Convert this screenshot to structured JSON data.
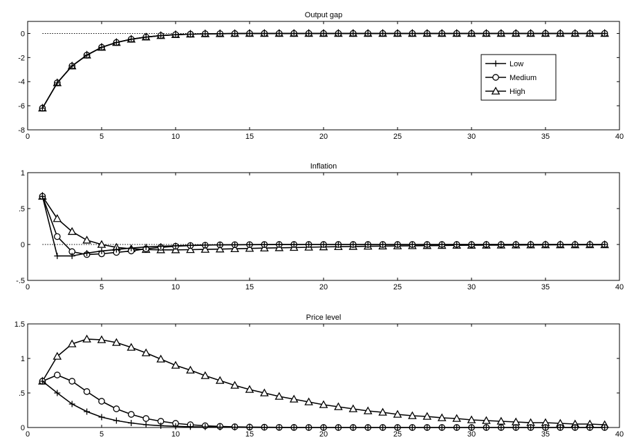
{
  "chart_data": [
    {
      "type": "line",
      "title": "Output gap",
      "xlabel": "",
      "ylabel": "",
      "xlim": [
        0,
        40
      ],
      "ylim": [
        -8,
        1
      ],
      "xticks": [
        0,
        5,
        10,
        15,
        20,
        25,
        30,
        35,
        40
      ],
      "yticks": [
        -8,
        -6,
        -4,
        -2,
        0
      ],
      "grid": false,
      "zero_line": true,
      "legend": {
        "placement": "upper-right",
        "entries": [
          "Low",
          "Medium",
          "High"
        ]
      },
      "x": [
        1,
        2,
        3,
        4,
        5,
        6,
        7,
        8,
        9,
        10,
        11,
        12,
        13,
        14,
        15,
        16,
        17,
        18,
        19,
        20,
        21,
        22,
        23,
        24,
        25,
        26,
        27,
        28,
        29,
        30,
        31,
        32,
        33,
        34,
        35,
        36,
        37,
        38,
        39
      ],
      "series": [
        {
          "name": "Low",
          "marker": "plus",
          "values": [
            -6.2,
            -4.1,
            -2.7,
            -1.8,
            -1.15,
            -0.75,
            -0.48,
            -0.3,
            -0.18,
            -0.1,
            -0.06,
            -0.03,
            -0.02,
            -0.01,
            0,
            0,
            0,
            0,
            0,
            0,
            0,
            0,
            0,
            0,
            0,
            0,
            0,
            0,
            0,
            0,
            0,
            0,
            0,
            0,
            0,
            0,
            0,
            0,
            0
          ]
        },
        {
          "name": "Medium",
          "marker": "circle",
          "values": [
            -6.2,
            -4.1,
            -2.7,
            -1.8,
            -1.15,
            -0.75,
            -0.48,
            -0.3,
            -0.18,
            -0.1,
            -0.06,
            -0.03,
            -0.02,
            -0.01,
            0,
            0,
            0,
            0,
            0,
            0,
            0,
            0,
            0,
            0,
            0,
            0,
            0,
            0,
            0,
            0,
            0,
            0,
            0,
            0,
            0,
            0,
            0,
            0,
            0
          ]
        },
        {
          "name": "High",
          "marker": "triangle",
          "values": [
            -6.2,
            -4.1,
            -2.7,
            -1.8,
            -1.15,
            -0.75,
            -0.48,
            -0.3,
            -0.18,
            -0.1,
            -0.06,
            -0.03,
            -0.02,
            -0.01,
            0,
            0,
            0,
            0,
            0,
            0,
            0,
            0,
            0,
            0,
            0,
            0,
            0,
            0,
            0,
            0,
            0,
            0,
            0,
            0,
            0,
            0,
            0,
            0,
            0
          ]
        }
      ]
    },
    {
      "type": "line",
      "title": "Inflation",
      "xlabel": "",
      "ylabel": "",
      "xlim": [
        0,
        40
      ],
      "ylim": [
        -0.5,
        1
      ],
      "xticks": [
        0,
        5,
        10,
        15,
        20,
        25,
        30,
        35,
        40
      ],
      "yticks": [
        -0.5,
        0,
        0.5,
        1
      ],
      "grid": false,
      "zero_line": true,
      "x": [
        1,
        2,
        3,
        4,
        5,
        6,
        7,
        8,
        9,
        10,
        11,
        12,
        13,
        14,
        15,
        16,
        17,
        18,
        19,
        20,
        21,
        22,
        23,
        24,
        25,
        26,
        27,
        28,
        29,
        30,
        31,
        32,
        33,
        34,
        35,
        36,
        37,
        38,
        39
      ],
      "series": [
        {
          "name": "Low",
          "marker": "plus",
          "values": [
            0.67,
            -0.16,
            -0.16,
            -0.12,
            -0.09,
            -0.07,
            -0.05,
            -0.035,
            -0.025,
            -0.018,
            -0.012,
            -0.008,
            -0.006,
            -0.004,
            -0.003,
            -0.002,
            -0.001,
            -0.001,
            0,
            0,
            0,
            0,
            0,
            0,
            0,
            0,
            0,
            0,
            0,
            0,
            0,
            0,
            0,
            0,
            0,
            0,
            0,
            0,
            0
          ]
        },
        {
          "name": "Medium",
          "marker": "circle",
          "values": [
            0.67,
            0.11,
            -0.1,
            -0.14,
            -0.13,
            -0.11,
            -0.09,
            -0.06,
            -0.04,
            -0.025,
            -0.015,
            -0.01,
            -0.005,
            -0.003,
            -0.002,
            -0.001,
            0,
            0,
            0,
            0,
            0,
            0,
            0,
            0,
            0,
            0,
            0,
            0,
            0,
            0,
            0,
            0,
            0,
            0,
            0,
            0,
            0,
            0,
            0
          ]
        },
        {
          "name": "High",
          "marker": "triangle",
          "values": [
            0.67,
            0.36,
            0.18,
            0.06,
            0.0,
            -0.04,
            -0.06,
            -0.07,
            -0.075,
            -0.075,
            -0.072,
            -0.068,
            -0.064,
            -0.06,
            -0.055,
            -0.05,
            -0.046,
            -0.042,
            -0.038,
            -0.034,
            -0.031,
            -0.028,
            -0.025,
            -0.022,
            -0.02,
            -0.018,
            -0.016,
            -0.014,
            -0.012,
            -0.011,
            -0.01,
            -0.009,
            -0.008,
            -0.007,
            -0.006,
            -0.005,
            -0.005,
            -0.004,
            -0.004
          ]
        }
      ]
    },
    {
      "type": "line",
      "title": "Price level",
      "xlabel": "",
      "ylabel": "",
      "xlim": [
        0,
        40
      ],
      "ylim": [
        0,
        1.5
      ],
      "xticks": [
        0,
        5,
        10,
        15,
        20,
        25,
        30,
        35,
        40
      ],
      "yticks": [
        0,
        0.5,
        1,
        1.5
      ],
      "grid": false,
      "zero_line": true,
      "x": [
        1,
        2,
        3,
        4,
        5,
        6,
        7,
        8,
        9,
        10,
        11,
        12,
        13,
        14,
        15,
        16,
        17,
        18,
        19,
        20,
        21,
        22,
        23,
        24,
        25,
        26,
        27,
        28,
        29,
        30,
        31,
        32,
        33,
        34,
        35,
        36,
        37,
        38,
        39
      ],
      "series": [
        {
          "name": "Low",
          "marker": "plus",
          "values": [
            0.67,
            0.5,
            0.34,
            0.23,
            0.15,
            0.1,
            0.065,
            0.04,
            0.026,
            0.017,
            0.011,
            0.007,
            0.004,
            0.003,
            0.002,
            0.001,
            0,
            0,
            0,
            0,
            0,
            0,
            0,
            0,
            0,
            0,
            0,
            0,
            0,
            0,
            0,
            0,
            0,
            0,
            0,
            0,
            0,
            0,
            0
          ]
        },
        {
          "name": "Medium",
          "marker": "circle",
          "values": [
            0.67,
            0.76,
            0.67,
            0.52,
            0.38,
            0.27,
            0.19,
            0.13,
            0.09,
            0.06,
            0.04,
            0.025,
            0.016,
            0.01,
            0.006,
            0.004,
            0.002,
            0.001,
            0,
            0,
            0,
            0,
            0,
            0,
            0,
            0,
            0,
            0,
            0,
            0,
            0,
            0,
            0,
            0,
            0,
            0,
            0,
            0,
            0
          ]
        },
        {
          "name": "High",
          "marker": "triangle",
          "values": [
            0.67,
            1.03,
            1.21,
            1.28,
            1.27,
            1.23,
            1.16,
            1.08,
            0.99,
            0.9,
            0.83,
            0.75,
            0.68,
            0.61,
            0.55,
            0.5,
            0.45,
            0.41,
            0.37,
            0.33,
            0.3,
            0.27,
            0.24,
            0.22,
            0.19,
            0.17,
            0.16,
            0.14,
            0.13,
            0.11,
            0.1,
            0.09,
            0.08,
            0.07,
            0.07,
            0.06,
            0.05,
            0.05,
            0.04
          ]
        }
      ]
    }
  ]
}
